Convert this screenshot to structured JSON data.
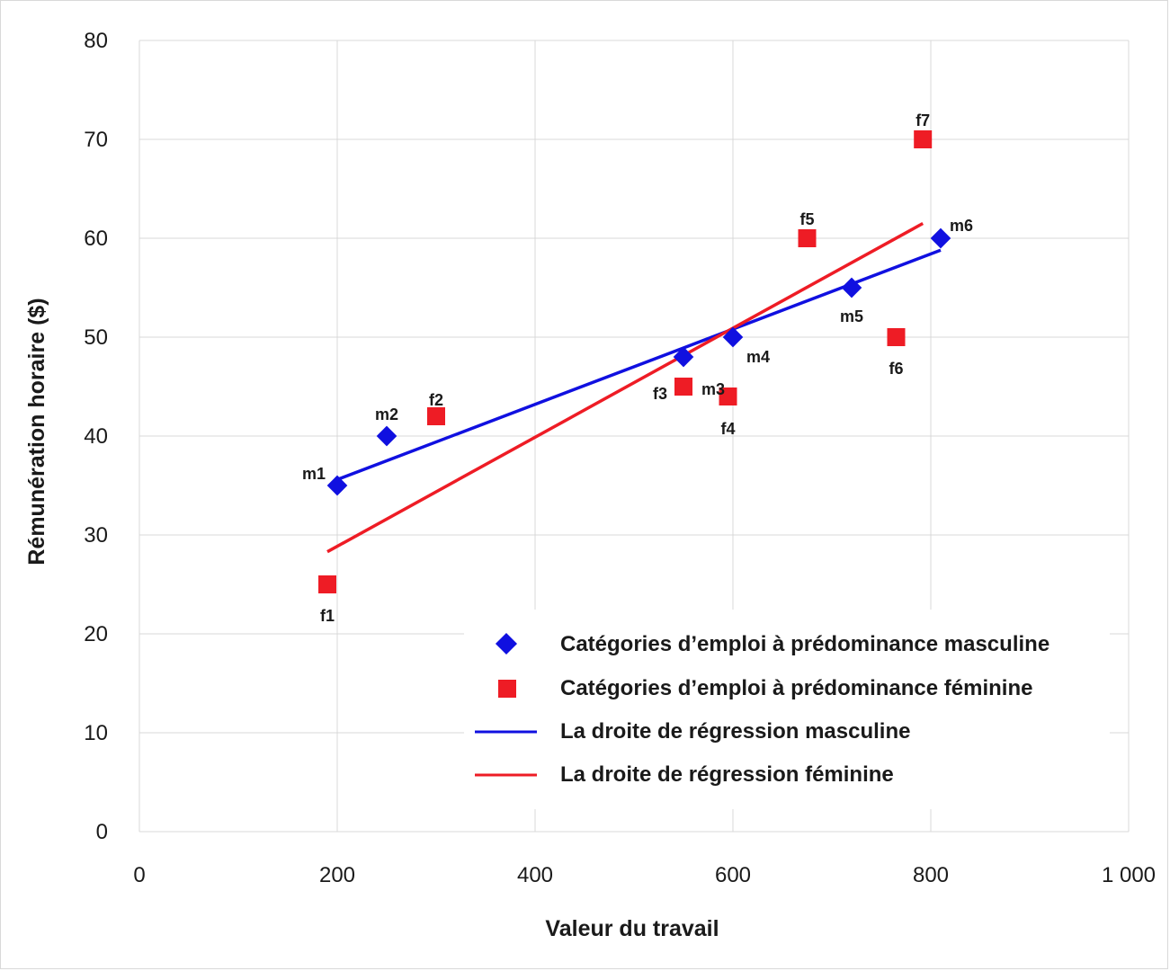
{
  "chart_data": {
    "type": "scatter",
    "xlabel": "Valeur du travail",
    "ylabel": "Rémunération horaire ($)",
    "xlim": [
      0,
      1000
    ],
    "ylim": [
      0,
      80
    ],
    "x_ticks": [
      "0",
      "200",
      "400",
      "600",
      "800",
      "1 000"
    ],
    "y_ticks": [
      "0",
      "10",
      "20",
      "30",
      "40",
      "50",
      "60",
      "70",
      "80"
    ],
    "grid": true,
    "legend_position": "bottom-right",
    "series": [
      {
        "name": "Catégories d’emploi à prédominance masculine",
        "marker": "diamond",
        "color": "#1010e0",
        "points": [
          {
            "label": "m1",
            "x": 200,
            "y": 35
          },
          {
            "label": "m2",
            "x": 250,
            "y": 40
          },
          {
            "label": "m3",
            "x": 550,
            "y": 48
          },
          {
            "label": "m4",
            "x": 600,
            "y": 50
          },
          {
            "label": "m5",
            "x": 720,
            "y": 55
          },
          {
            "label": "m6",
            "x": 810,
            "y": 60
          }
        ]
      },
      {
        "name": "Catégories d’emploi à prédominance féminine",
        "marker": "square",
        "color": "#ee1c25",
        "points": [
          {
            "label": "f1",
            "x": 190,
            "y": 25
          },
          {
            "label": "f2",
            "x": 300,
            "y": 42
          },
          {
            "label": "f3",
            "x": 550,
            "y": 45
          },
          {
            "label": "f4",
            "x": 595,
            "y": 44
          },
          {
            "label": "f5",
            "x": 675,
            "y": 60
          },
          {
            "label": "f6",
            "x": 765,
            "y": 50
          },
          {
            "label": "f7",
            "x": 792,
            "y": 70
          }
        ]
      }
    ],
    "regression_lines": [
      {
        "name": "La droite de régression masculine",
        "color": "#1010e0",
        "from": {
          "x": 200,
          "y": 35.6
        },
        "to": {
          "x": 810,
          "y": 58.8
        }
      },
      {
        "name": "La droite de régression féminine",
        "color": "#ee1c25",
        "from": {
          "x": 190,
          "y": 28.3
        },
        "to": {
          "x": 792,
          "y": 61.5
        }
      }
    ]
  }
}
